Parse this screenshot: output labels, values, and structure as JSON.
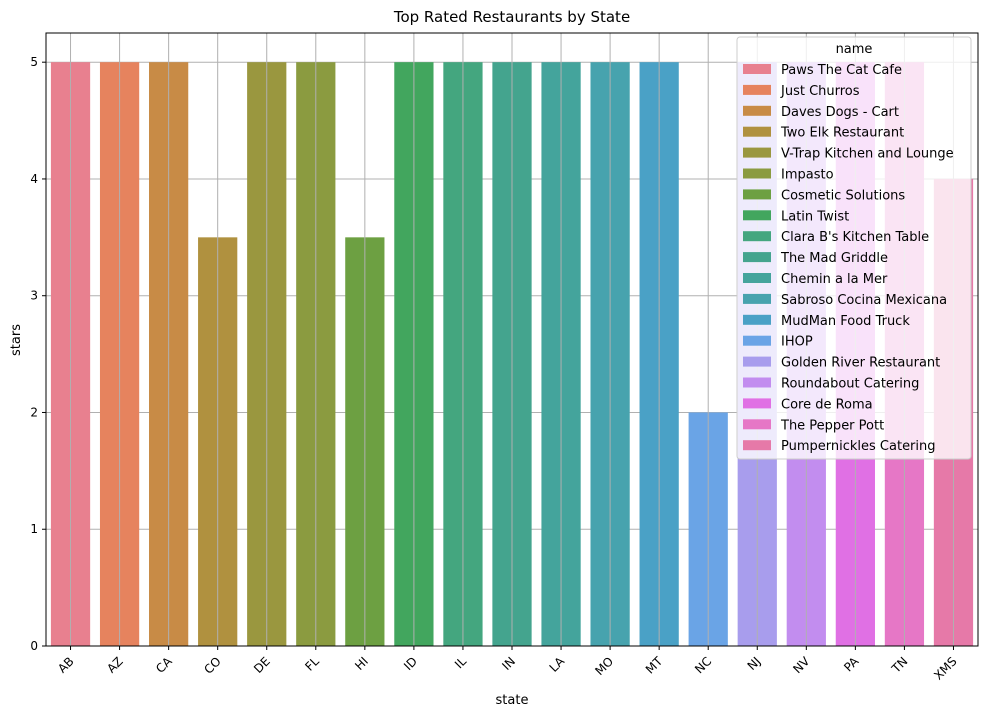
{
  "chart_data": {
    "type": "bar",
    "title": "Top Rated Restaurants by State",
    "xlabel": "state",
    "ylabel": "stars",
    "ylim": [
      0,
      5.25
    ],
    "yticks": [
      0,
      1,
      2,
      3,
      4,
      5
    ],
    "grid": true,
    "legend_title": "name",
    "legend_position": "top-right",
    "categories": [
      "AB",
      "AZ",
      "CA",
      "CO",
      "DE",
      "FL",
      "HI",
      "ID",
      "IL",
      "IN",
      "LA",
      "MO",
      "MT",
      "NC",
      "NJ",
      "NV",
      "PA",
      "TN",
      "XMS"
    ],
    "series": [
      {
        "name": "Paws The Cat Cafe",
        "category": "AB",
        "value": 5,
        "color": "#e8808f"
      },
      {
        "name": "Just Churros",
        "category": "AZ",
        "value": 5,
        "color": "#e6835e"
      },
      {
        "name": "Daves Dogs - Cart",
        "category": "CA",
        "value": 5,
        "color": "#c88b46"
      },
      {
        "name": "Two Elk Restaurant",
        "category": "CO",
        "value": 3.5,
        "color": "#b0913f"
      },
      {
        "name": "V-Trap Kitchen and Lounge",
        "category": "DE",
        "value": 5,
        "color": "#9a973f"
      },
      {
        "name": "Impasto",
        "category": "FL",
        "value": 5,
        "color": "#8b9b40"
      },
      {
        "name": "Cosmetic Solutions",
        "category": "HI",
        "value": 3.5,
        "color": "#6da042"
      },
      {
        "name": "Latin Twist",
        "category": "ID",
        "value": 5,
        "color": "#42a65e"
      },
      {
        "name": "Clara B's Kitchen Table",
        "category": "IL",
        "value": 5,
        "color": "#44a67f"
      },
      {
        "name": "The Mad Griddle",
        "category": "IN",
        "value": 5,
        "color": "#44a48e"
      },
      {
        "name": "Chemin a la Mer",
        "category": "LA",
        "value": 5,
        "color": "#44a49c"
      },
      {
        "name": "Sabroso Cocina Mexicana",
        "category": "MO",
        "value": 5,
        "color": "#47a3ae"
      },
      {
        "name": "MudMan Food Truck",
        "category": "MT",
        "value": 5,
        "color": "#4aa1c6"
      },
      {
        "name": "IHOP",
        "category": "NC",
        "value": 2,
        "color": "#6aa4e6"
      },
      {
        "name": "Golden River Restaurant",
        "category": "NJ",
        "value": 5,
        "color": "#a89ded"
      },
      {
        "name": "Roundabout Catering",
        "category": "NV",
        "value": 5,
        "color": "#c28def"
      },
      {
        "name": "Core de Roma",
        "category": "PA",
        "value": 5,
        "color": "#e070e4"
      },
      {
        "name": "The Pepper Pott",
        "category": "TN",
        "value": 5,
        "color": "#e677c6"
      },
      {
        "name": "Pumpernickles Catering",
        "category": "XMS",
        "value": 4,
        "color": "#e679a8"
      }
    ]
  }
}
